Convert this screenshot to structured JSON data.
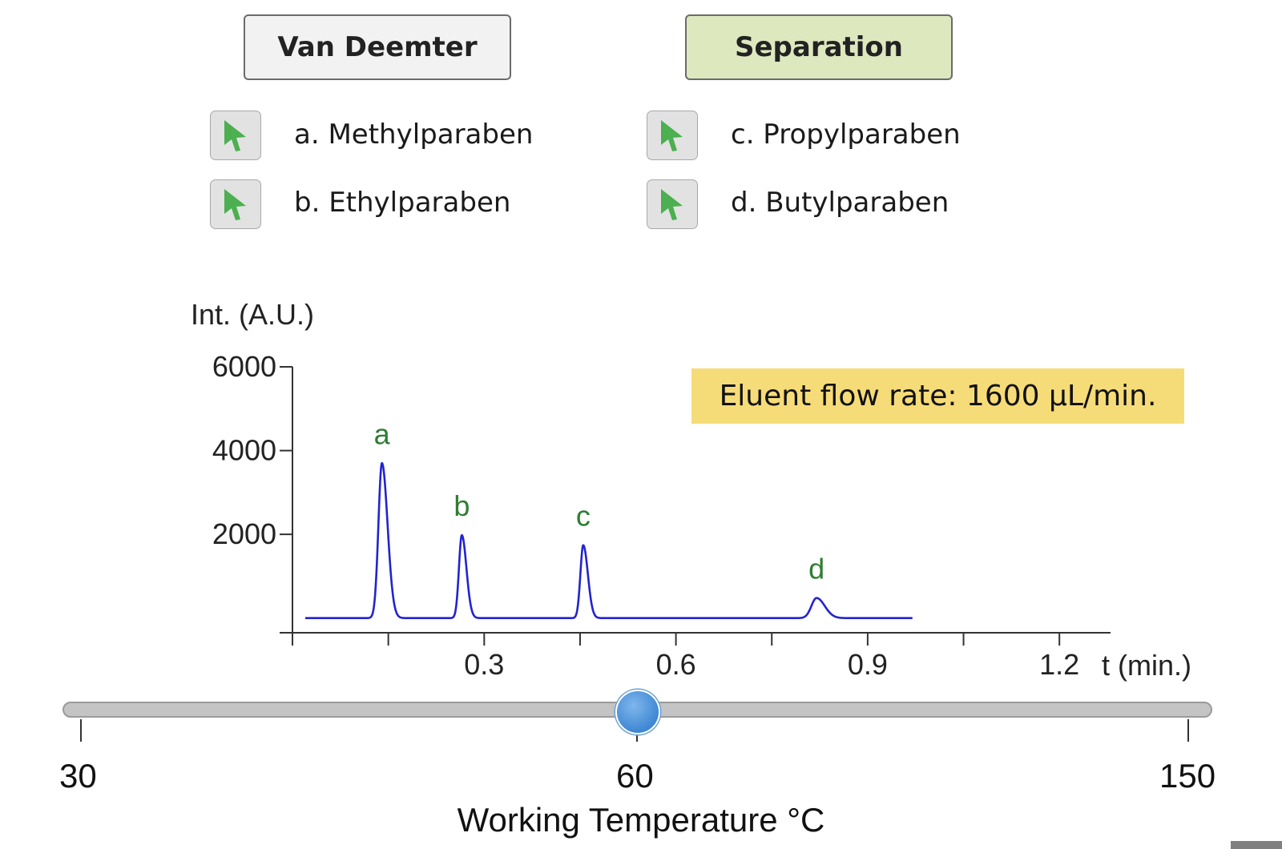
{
  "mode_buttons": {
    "van_deemter": "Van Deemter",
    "separation": "Separation",
    "active": "separation"
  },
  "compounds": [
    {
      "label": "a. Methylparaben",
      "tag": "a"
    },
    {
      "label": "b. Ethylparaben",
      "tag": "b"
    },
    {
      "label": "c. Propylparaben",
      "tag": "c"
    },
    {
      "label": "d. Butylparaben",
      "tag": "d"
    }
  ],
  "icons": {
    "toggle": "green-cursor-arrow-icon"
  },
  "flow_rate_label": "Eluent flow rate: 1600 µL/min.",
  "colors": {
    "trace": "#2323d0",
    "peak_label": "#2e7d32",
    "toggle_arrow": "#4caf50",
    "badge": "#f6dc78",
    "separation_button": "#dde8bf"
  },
  "chart_data": {
    "type": "line",
    "ylabel": "Int. (A.U.)",
    "xlabel": "t (min.)",
    "xlim": [
      0,
      1.28
    ],
    "ylim": [
      -350,
      6000
    ],
    "x_ticks": [
      0,
      0.15,
      0.3,
      0.45,
      0.6,
      0.75,
      0.9,
      1.05,
      1.2
    ],
    "x_tick_labels": [
      "0.3",
      "0.6",
      "0.9",
      "1.2"
    ],
    "y_ticks": [
      2000,
      4000,
      6000
    ],
    "y_tick_labels": [
      "2000",
      "4000",
      "6000"
    ],
    "baseline": 0,
    "x_range": [
      0.02,
      0.97
    ],
    "peaks": [
      {
        "label": "a",
        "t": 0.14,
        "height": 3700,
        "width": 0.0055
      },
      {
        "label": "b",
        "t": 0.265,
        "height": 1980,
        "width": 0.0045
      },
      {
        "label": "c",
        "t": 0.455,
        "height": 1740,
        "width": 0.0045
      },
      {
        "label": "d",
        "t": 0.82,
        "height": 480,
        "width": 0.008
      }
    ],
    "grid": false
  },
  "slider": {
    "min": "30",
    "value": "60",
    "max": "150",
    "title": "Working Temperature °C"
  }
}
